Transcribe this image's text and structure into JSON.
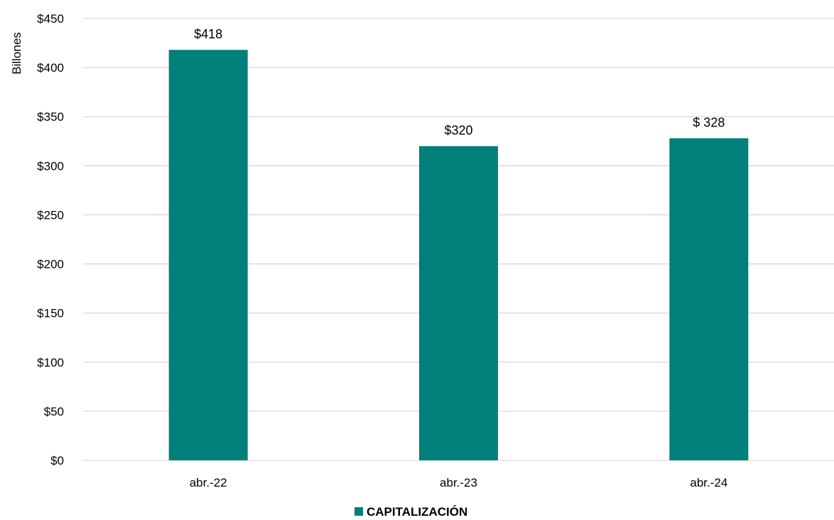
{
  "chart_data": {
    "type": "bar",
    "categories": [
      "abr.-22",
      "abr.-23",
      "abr.-24"
    ],
    "series": [
      {
        "name": "CAPITALIZACIÓN",
        "values": [
          418,
          320,
          328
        ],
        "data_labels": [
          "$418",
          "$320",
          "$ 328"
        ],
        "color": "#007f7b"
      }
    ],
    "ylabel": "Billones",
    "ylim": [
      0,
      450
    ],
    "yticks": [
      0,
      50,
      100,
      150,
      200,
      250,
      300,
      350,
      400,
      450
    ],
    "ytick_labels": [
      "$0",
      "$50",
      "$100",
      "$150",
      "$200",
      "$250",
      "$300",
      "$350",
      "$400",
      "$450"
    ],
    "grid": true,
    "gridline_color": "#d9d9d9",
    "legend_position": "bottom"
  }
}
